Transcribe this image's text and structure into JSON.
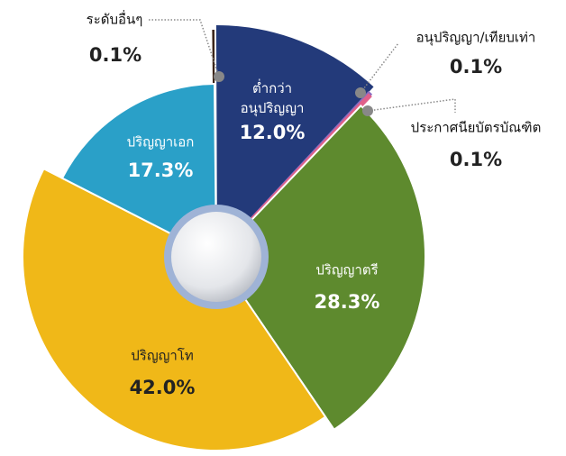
{
  "chart_data": {
    "type": "pie",
    "categories": [
      "ระดับอื่นๆ",
      "ต่ำกว่า\nอนุปริญญา",
      "อนุปริญญา/เทียบเท่า",
      "ประกาศนียบัตรบัณฑิต",
      "ปริญญาตรี",
      "ปริญญาโท",
      "ปริญญาเอก"
    ],
    "values": [
      0.1,
      12.0,
      0.1,
      0.1,
      28.3,
      42.0,
      17.3
    ],
    "value_labels": [
      "0.1%",
      "12.0%",
      "0.1%",
      "0.1%",
      "28.3%",
      "42.0%",
      "17.3%"
    ],
    "colors": [
      "#3a2418",
      "#233a7a",
      "#8a6cc0",
      "#e0608a",
      "#5e8a2e",
      "#f0b818",
      "#2aa0c8"
    ]
  }
}
